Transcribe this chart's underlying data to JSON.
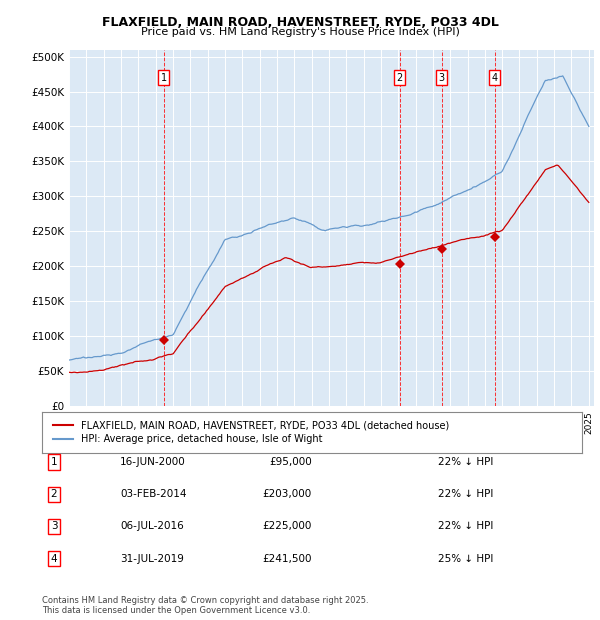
{
  "title": "FLAXFIELD, MAIN ROAD, HAVENSTREET, RYDE, PO33 4DL",
  "subtitle": "Price paid vs. HM Land Registry's House Price Index (HPI)",
  "plot_bg_color": "#dce9f5",
  "y_ticks": [
    0,
    50000,
    100000,
    150000,
    200000,
    250000,
    300000,
    350000,
    400000,
    450000,
    500000
  ],
  "y_tick_labels": [
    "£0",
    "£50K",
    "£100K",
    "£150K",
    "£200K",
    "£250K",
    "£300K",
    "£350K",
    "£400K",
    "£450K",
    "£500K"
  ],
  "ylim": [
    0,
    510000
  ],
  "sale_color": "#cc0000",
  "hpi_color": "#6699cc",
  "sale_points": [
    {
      "date_num": 2000.46,
      "price": 95000,
      "label": "1"
    },
    {
      "date_num": 2014.09,
      "price": 203000,
      "label": "2"
    },
    {
      "date_num": 2016.51,
      "price": 225000,
      "label": "3"
    },
    {
      "date_num": 2019.58,
      "price": 241500,
      "label": "4"
    }
  ],
  "vline_dates": [
    2000.46,
    2014.09,
    2016.51,
    2019.58
  ],
  "table_rows": [
    {
      "num": "1",
      "date": "16-JUN-2000",
      "price": "£95,000",
      "hpi": "22% ↓ HPI"
    },
    {
      "num": "2",
      "date": "03-FEB-2014",
      "price": "£203,000",
      "hpi": "22% ↓ HPI"
    },
    {
      "num": "3",
      "date": "06-JUL-2016",
      "price": "£225,000",
      "hpi": "22% ↓ HPI"
    },
    {
      "num": "4",
      "date": "31-JUL-2019",
      "price": "£241,500",
      "hpi": "25% ↓ HPI"
    }
  ],
  "footnote": "Contains HM Land Registry data © Crown copyright and database right 2025.\nThis data is licensed under the Open Government Licence v3.0.",
  "legend_sale": "FLAXFIELD, MAIN ROAD, HAVENSTREET, RYDE, PO33 4DL (detached house)",
  "legend_hpi": "HPI: Average price, detached house, Isle of Wight"
}
